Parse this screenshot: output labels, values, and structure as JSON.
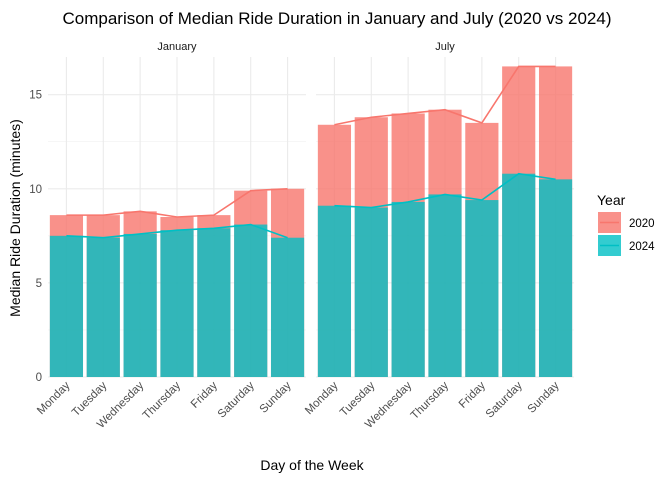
{
  "chart_data": {
    "type": "bar",
    "title": "Comparison of Median Ride Duration in January and July (2020 vs 2024)",
    "xlabel": "Day of the Week",
    "ylabel": "Median Ride Duration (minutes)",
    "ylim": [
      0,
      17
    ],
    "yticks": [
      0,
      5,
      10,
      15
    ],
    "grid": true,
    "legend": {
      "title": "Year",
      "position": "right"
    },
    "categories": [
      "Monday",
      "Tuesday",
      "Wednesday",
      "Thursday",
      "Friday",
      "Saturday",
      "Sunday"
    ],
    "panels": [
      {
        "label": "January",
        "series": [
          {
            "name": "2020",
            "color": "#F8766D",
            "values": [
              8.6,
              8.6,
              8.8,
              8.5,
              8.6,
              9.9,
              10.0
            ]
          },
          {
            "name": "2024",
            "color": "#00BFC4",
            "values": [
              7.5,
              7.4,
              7.6,
              7.8,
              7.9,
              8.1,
              7.4
            ]
          }
        ]
      },
      {
        "label": "July",
        "series": [
          {
            "name": "2020",
            "color": "#F8766D",
            "values": [
              13.4,
              13.8,
              14.0,
              14.2,
              13.5,
              16.5,
              16.5
            ]
          },
          {
            "name": "2024",
            "color": "#00BFC4",
            "values": [
              9.1,
              9.0,
              9.3,
              9.7,
              9.4,
              10.8,
              10.5
            ]
          }
        ]
      }
    ]
  }
}
